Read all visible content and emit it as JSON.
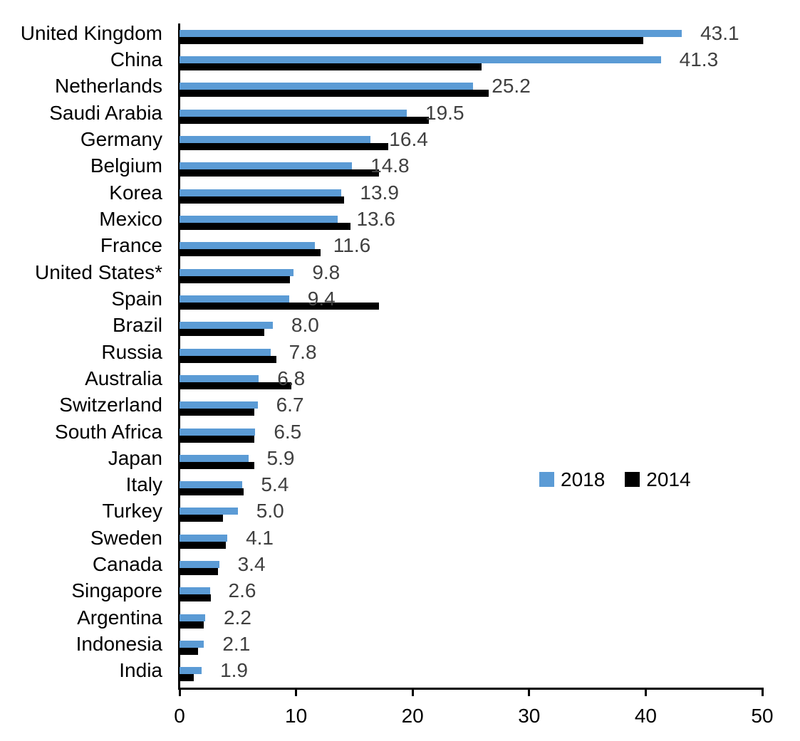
{
  "chart_data": {
    "type": "bar",
    "orientation": "horizontal",
    "grid": false,
    "xlim": [
      0,
      50
    ],
    "xticks": [
      "0",
      "10",
      "20",
      "30",
      "40",
      "50"
    ],
    "xtick_values": [
      0,
      10,
      20,
      30,
      40,
      50
    ],
    "legend_position": "middle-right",
    "categories": [
      "United Kingdom",
      "China",
      "Netherlands",
      "Saudi Arabia",
      "Germany",
      "Belgium",
      "Korea",
      "Mexico",
      "France",
      "United States*",
      "Spain",
      "Brazil",
      "Russia",
      "Australia",
      "Switzerland",
      "South Africa",
      "Japan",
      "Italy",
      "Turkey",
      "Sweden",
      "Canada",
      "Singapore",
      "Argentina",
      "Indonesia",
      "India"
    ],
    "series": [
      {
        "name": "2018",
        "color": "#5B9BD5",
        "values": [
          43.1,
          41.3,
          25.2,
          19.5,
          16.4,
          14.8,
          13.9,
          13.6,
          11.6,
          9.8,
          9.4,
          8.0,
          7.8,
          6.8,
          6.7,
          6.5,
          5.9,
          5.4,
          5.0,
          4.1,
          3.4,
          2.6,
          2.2,
          2.1,
          1.9
        ],
        "labels": [
          "43.1",
          "41.3",
          "25.2",
          "19.5",
          "16.4",
          "14.8",
          "13.9",
          "13.6",
          "11.6",
          "9.8",
          "9.4",
          "8.0",
          "7.8",
          "6.8",
          "6.7",
          "6.5",
          "5.9",
          "5.4",
          "5.0",
          "4.1",
          "3.4",
          "2.6",
          "2.2",
          "2.1",
          "1.9"
        ]
      },
      {
        "name": "2014",
        "color": "#000000",
        "values": [
          39.8,
          25.9,
          26.5,
          21.4,
          17.9,
          17.1,
          14.1,
          14.7,
          12.1,
          9.5,
          17.1,
          7.3,
          8.3,
          9.6,
          6.4,
          6.4,
          6.4,
          5.5,
          3.7,
          4.0,
          3.3,
          2.7,
          2.1,
          1.6,
          1.2
        ]
      }
    ],
    "data_labels_series": "2018",
    "colors": {
      "axis": "#000000",
      "data_label": "#404040",
      "category_label": "#000000",
      "background": "#FFFFFF"
    }
  }
}
